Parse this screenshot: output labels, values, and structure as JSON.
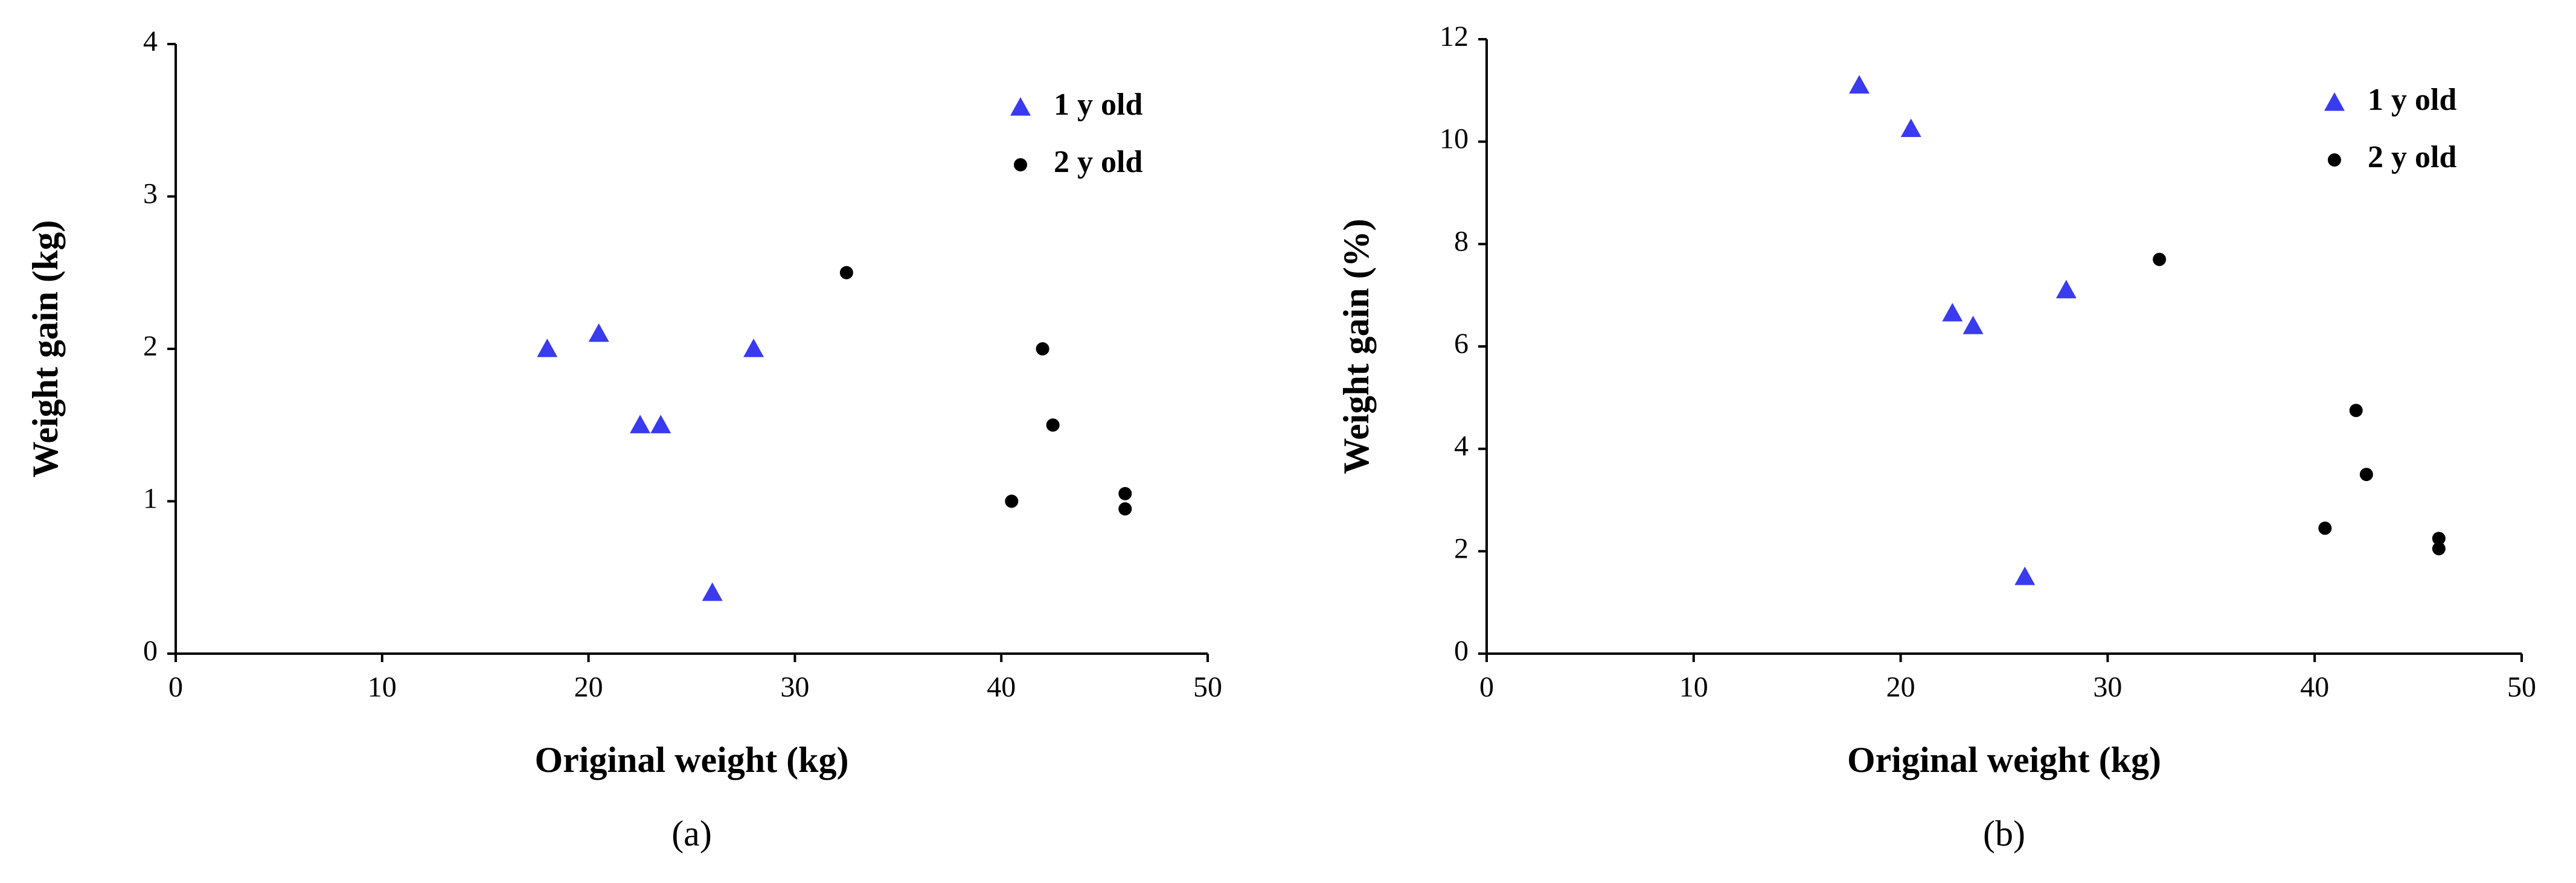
{
  "chart_data": [
    {
      "type": "scatter",
      "caption": "(a)",
      "x_label": "Original weight (kg)",
      "y_label": "Weight gain (kg)",
      "xlim": [
        0,
        50
      ],
      "xticks": [
        0,
        10,
        20,
        30,
        40,
        50
      ],
      "ylim": [
        0,
        4
      ],
      "yticks": [
        0,
        1,
        2,
        3,
        4
      ],
      "legend": "upper right",
      "series": [
        {
          "name": "1 y old",
          "color": "#3a3af0",
          "marker": "triangle",
          "x": [
            18,
            20.5,
            22.5,
            23.5,
            26,
            28
          ],
          "values": [
            2,
            2.1,
            1.5,
            1.5,
            0.4,
            2
          ]
        },
        {
          "name": "2 y old",
          "color": "#000000",
          "marker": "circle",
          "x": [
            32.5,
            40.5,
            42,
            42.5,
            46,
            46
          ],
          "values": [
            2.5,
            1,
            2,
            1.5,
            1.05,
            0.95
          ]
        }
      ]
    },
    {
      "type": "scatter",
      "caption": "(b)",
      "x_label": "Original weight (kg)",
      "y_label": "Weight gain (%)",
      "xlim": [
        0,
        50
      ],
      "xticks": [
        0,
        10,
        20,
        30,
        40,
        50
      ],
      "ylim": [
        0,
        12
      ],
      "yticks": [
        0,
        2,
        4,
        6,
        8,
        10,
        12
      ],
      "legend": "upper right",
      "series": [
        {
          "name": "1 y old",
          "color": "#3a3af0",
          "marker": "triangle",
          "x": [
            18,
            20.5,
            22.5,
            23.5,
            26,
            28
          ],
          "values": [
            11.1,
            10.25,
            6.65,
            6.4,
            1.5,
            7.1
          ]
        },
        {
          "name": "2 y old",
          "color": "#000000",
          "marker": "circle",
          "x": [
            32.5,
            40.5,
            42,
            42.5,
            46,
            46
          ],
          "values": [
            7.7,
            2.45,
            4.75,
            3.5,
            2.25,
            2.05
          ]
        }
      ]
    }
  ]
}
